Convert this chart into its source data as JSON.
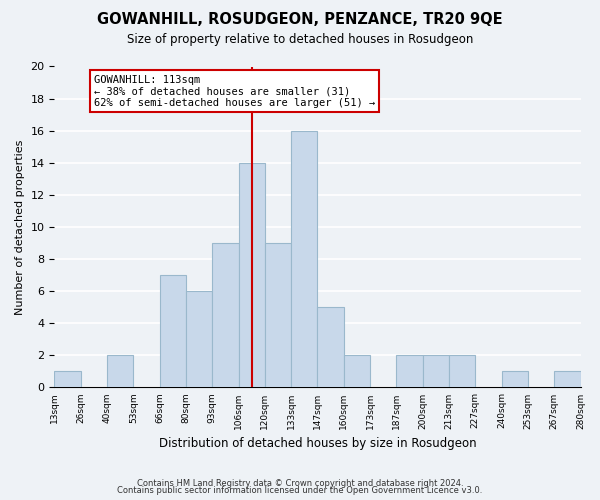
{
  "title": "GOWANHILL, ROSUDGEON, PENZANCE, TR20 9QE",
  "subtitle": "Size of property relative to detached houses in Rosudgeon",
  "xlabel": "Distribution of detached houses by size in Rosudgeon",
  "ylabel": "Number of detached properties",
  "counts": [
    1,
    0,
    2,
    0,
    7,
    6,
    9,
    14,
    9,
    16,
    5,
    2,
    0,
    2,
    2,
    2,
    0,
    1,
    0,
    1
  ],
  "tick_labels": [
    "13sqm",
    "26sqm",
    "40sqm",
    "53sqm",
    "66sqm",
    "80sqm",
    "93sqm",
    "106sqm",
    "120sqm",
    "133sqm",
    "147sqm",
    "160sqm",
    "173sqm",
    "187sqm",
    "200sqm",
    "213sqm",
    "227sqm",
    "240sqm",
    "253sqm",
    "267sqm",
    "280sqm"
  ],
  "bar_color": "#c8d8ea",
  "bar_edge_color": "#9ab8cc",
  "vline_color": "#cc0000",
  "vline_bar_index": 7.5,
  "annotation_title": "GOWANHILL: 113sqm",
  "annotation_line1": "← 38% of detached houses are smaller (31)",
  "annotation_line2": "62% of semi-detached houses are larger (51) →",
  "annotation_box_color": "#ffffff",
  "annotation_box_edge_color": "#cc0000",
  "ylim": [
    0,
    20
  ],
  "yticks": [
    0,
    2,
    4,
    6,
    8,
    10,
    12,
    14,
    16,
    18,
    20
  ],
  "footer1": "Contains HM Land Registry data © Crown copyright and database right 2024.",
  "footer2": "Contains public sector information licensed under the Open Government Licence v3.0.",
  "background_color": "#eef2f6",
  "grid_color": "#ffffff"
}
